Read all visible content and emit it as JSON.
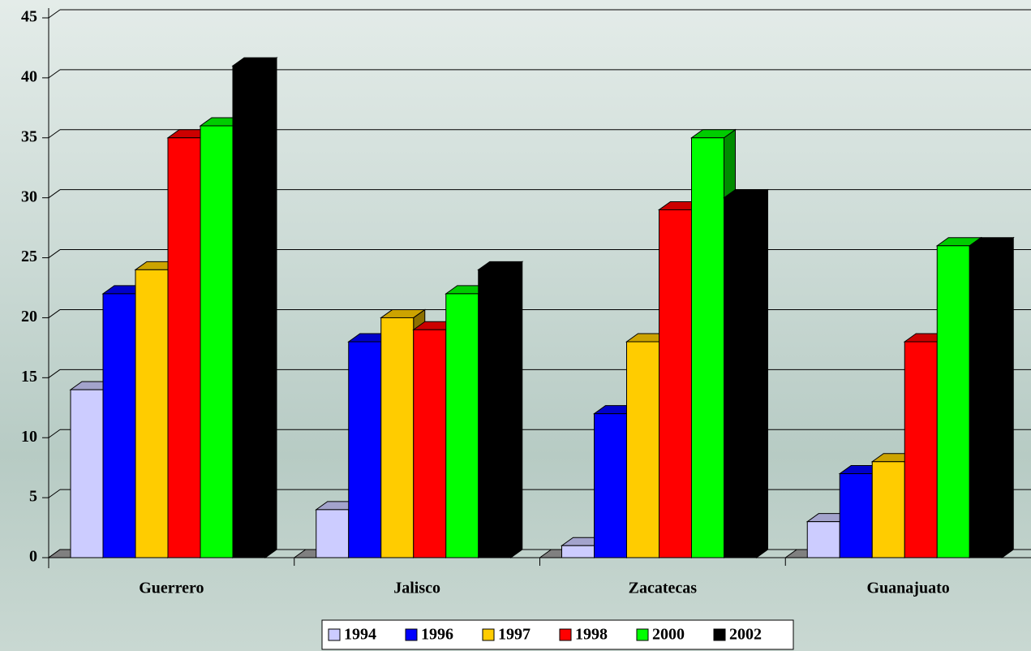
{
  "chart_data": {
    "type": "bar",
    "categories": [
      "Guerrero",
      "Jalisco",
      "Zacatecas",
      "Guanajuato"
    ],
    "series": [
      {
        "name": "1994",
        "color": "#ccccff",
        "values": [
          14,
          4,
          1,
          3
        ]
      },
      {
        "name": "1996",
        "color": "#0000ff",
        "values": [
          22,
          18,
          12,
          7
        ]
      },
      {
        "name": "1997",
        "color": "#ffcc00",
        "values": [
          24,
          20,
          18,
          8
        ]
      },
      {
        "name": "1998",
        "color": "#ff0000",
        "values": [
          35,
          19,
          29,
          18
        ]
      },
      {
        "name": "2000",
        "color": "#00ff00",
        "values": [
          36,
          22,
          35,
          26
        ]
      },
      {
        "name": "2002",
        "color": "#000000",
        "values": [
          41,
          24,
          30,
          26
        ]
      }
    ],
    "ylim": [
      0,
      45
    ],
    "yticks": [
      0,
      5,
      10,
      15,
      20,
      25,
      30,
      35,
      40,
      45
    ],
    "grid": true,
    "legend": "bottom"
  }
}
